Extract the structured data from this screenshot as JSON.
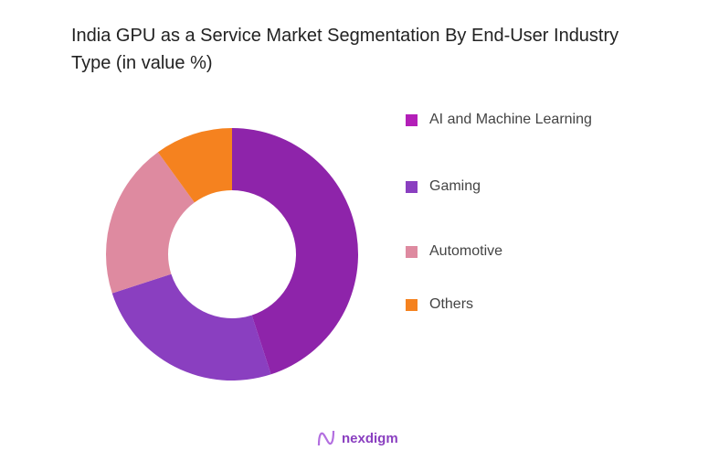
{
  "chart_data": {
    "type": "pie",
    "variant": "donut",
    "title": "India GPU as a Service Market Segmentation By End-User Industry Type (in value %)",
    "categories": [
      "AI and Machine Learning",
      "Gaming",
      "Automotive",
      "Others"
    ],
    "values": [
      45,
      25,
      20,
      10
    ],
    "colors": [
      "#8e24aa",
      "#8a3fc0",
      "#de8aa0",
      "#f5821f"
    ],
    "legend_colors": [
      "#b31fb8",
      "#8a3fc0",
      "#de8aa0",
      "#f5821f"
    ],
    "legend_position": "right"
  },
  "brand": {
    "name": "nexdigm",
    "color": "#8a3fc0"
  }
}
